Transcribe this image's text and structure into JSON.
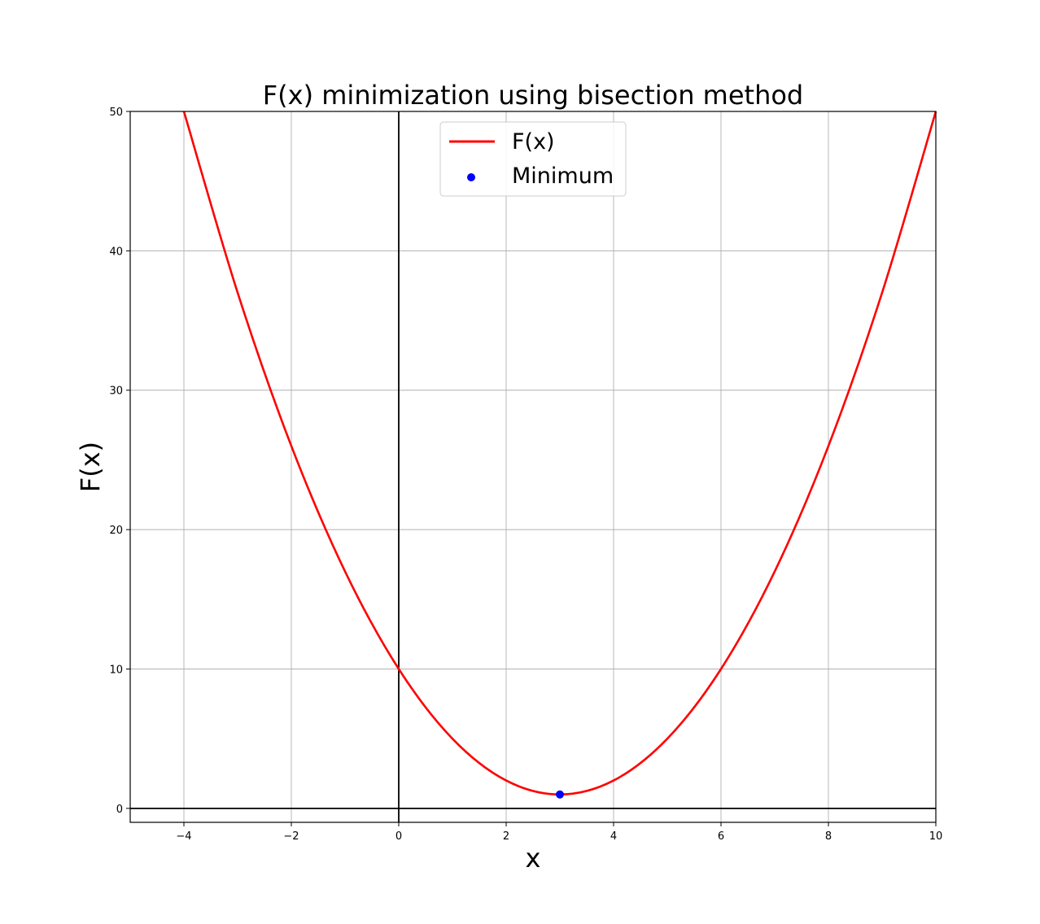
{
  "chart_data": {
    "type": "line",
    "title": "F(x) minimization using bisection method",
    "xlabel": "x",
    "ylabel": "F(x)",
    "xlim": [
      -5,
      10
    ],
    "ylim": [
      -1,
      50
    ],
    "x_ticks": [
      -4,
      -2,
      0,
      2,
      4,
      6,
      8,
      10
    ],
    "y_ticks": [
      0,
      10,
      20,
      30,
      40,
      50
    ],
    "x_tick_labels": [
      "−4",
      "−2",
      "0",
      "2",
      "4",
      "6",
      "8",
      "10"
    ],
    "y_tick_labels": [
      "0",
      "10",
      "20",
      "30",
      "40",
      "50"
    ],
    "grid": true,
    "legend_position": "top-center",
    "series": [
      {
        "name": "F(x)",
        "kind": "line",
        "color": "#ff0000",
        "x": [
          -4,
          -3,
          -2,
          -1,
          0,
          1,
          2,
          3,
          4,
          5,
          6,
          7,
          8,
          9,
          10
        ],
        "y": [
          50,
          37,
          26,
          17,
          10,
          5,
          2,
          1,
          2,
          5,
          10,
          17,
          26,
          37,
          50
        ]
      },
      {
        "name": "Minimum",
        "kind": "scatter",
        "color": "#0000ff",
        "x": [
          3
        ],
        "y": [
          1
        ]
      }
    ]
  }
}
